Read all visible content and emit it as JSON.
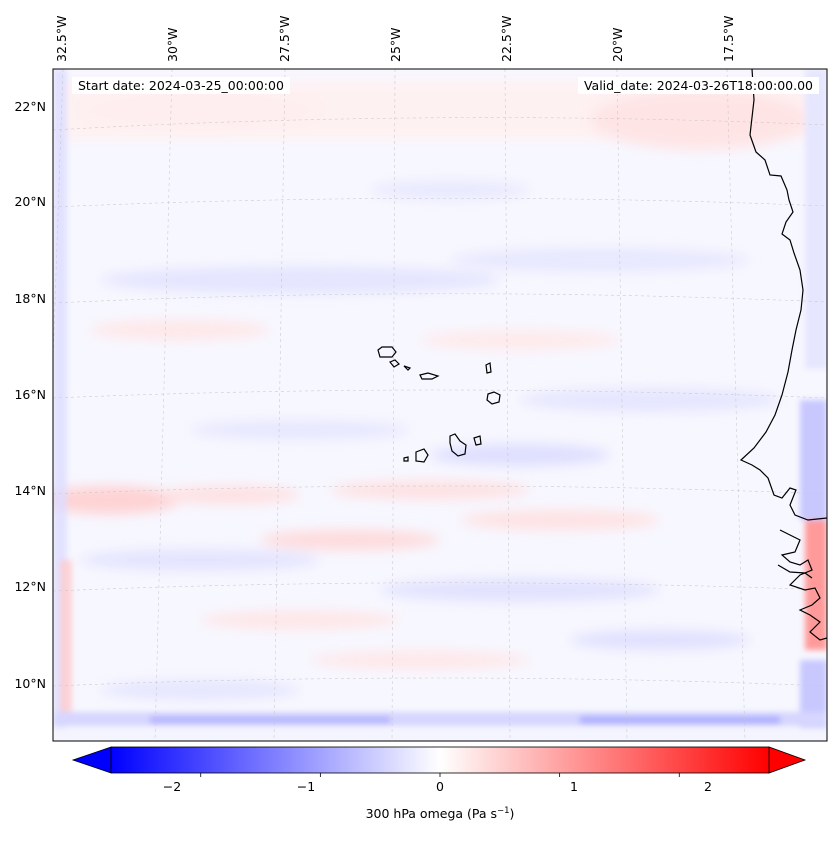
{
  "header": {
    "start_date": "Start date: 2024-03-25_00:00:00",
    "valid_date": "Valid_date: 2024-03-26T18:00:00.00"
  },
  "map": {
    "field": "300 hPa omega",
    "lon_ticks": [
      "32.5°W",
      "30°W",
      "27.5°W",
      "25°W",
      "22.5°W",
      "20°W",
      "17.5°W"
    ],
    "lat_ticks": [
      "22°N",
      "20°N",
      "18°N",
      "16°N",
      "14°N",
      "12°N",
      "10°N"
    ],
    "gridlines": true,
    "coastlines": "Cabo Verde islands, West African coast (Mauritania, Senegal, Gambia, Guinea-Bissau)"
  },
  "colorbar": {
    "colormap": "bwr",
    "colors": {
      "low": "#0000ff",
      "mid": "#ffffff",
      "high": "#ff0000"
    },
    "range": [
      -2.75,
      2.75
    ],
    "ticks": [
      {
        "value": -2,
        "label": "−2"
      },
      {
        "value": -1,
        "label": "−1"
      },
      {
        "value": 0,
        "label": "0"
      },
      {
        "value": 1,
        "label": "1"
      },
      {
        "value": 2,
        "label": "2"
      }
    ],
    "label_main": "300 hPa omega (Pa s",
    "label_exp": "−1",
    "label_close": ")",
    "extend": "both"
  }
}
